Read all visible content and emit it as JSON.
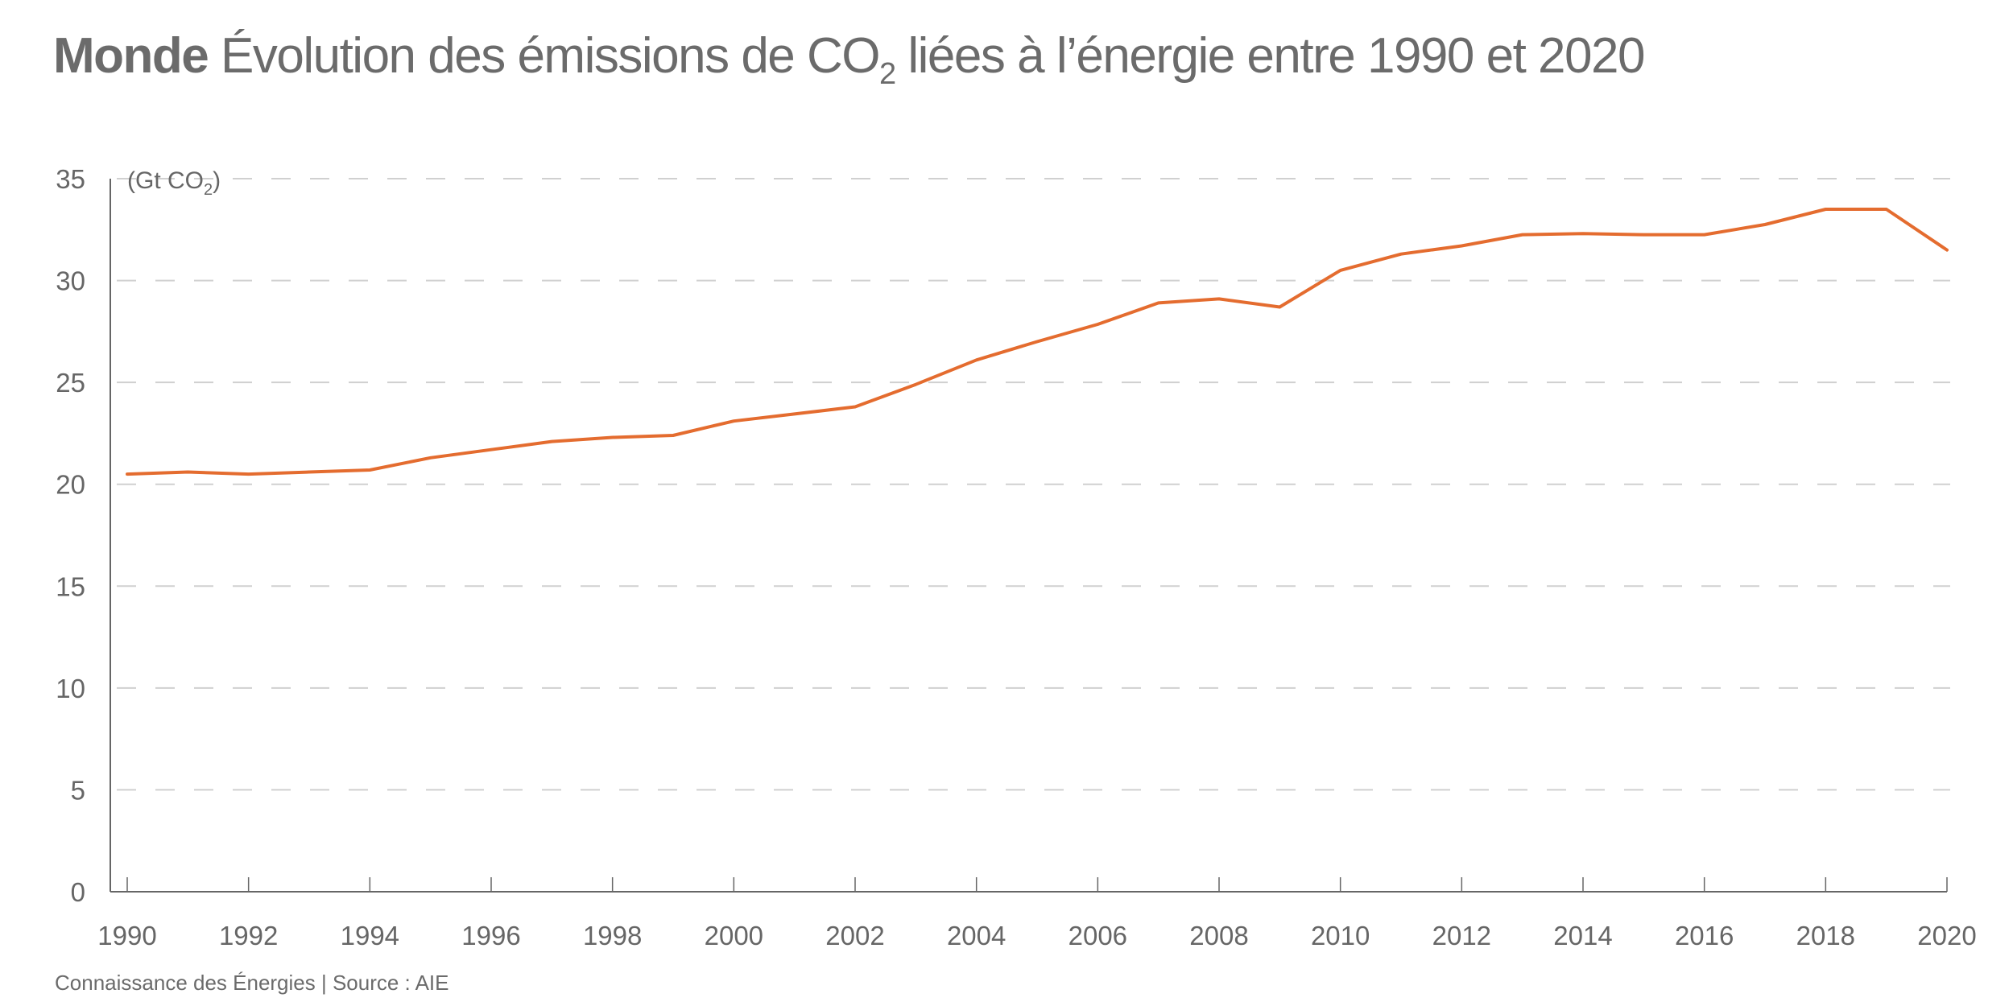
{
  "header": {
    "region": "Monde",
    "title_main": "Évolution des émissions de CO",
    "title_sub": "2",
    "title_rest": " liées à l’énergie entre 1990 et 2020"
  },
  "footer": {
    "credit": "Connaissance des Énergies | Source : AIE"
  },
  "colors": {
    "series": "#E46C2F",
    "text": "#666666",
    "axis": "#666666",
    "grid": "#D0D0D0"
  },
  "chart_data": {
    "type": "line",
    "title": "Monde Évolution des émissions de CO2 liées à l’énergie entre 1990 et 2020",
    "xlabel": "",
    "ylabel": "(Gt CO2)",
    "ylabel_main": "(Gt CO",
    "ylabel_sub": "2",
    "ylabel_end": ")",
    "ylim": [
      0,
      35
    ],
    "xlim": [
      1990,
      2020
    ],
    "y_ticks": [
      0,
      5,
      10,
      15,
      20,
      25,
      30,
      35
    ],
    "x_ticks": [
      1990,
      1992,
      1994,
      1996,
      1998,
      2000,
      2002,
      2004,
      2006,
      2008,
      2010,
      2012,
      2014,
      2016,
      2018,
      2020
    ],
    "grid": "horizontal-dashed",
    "legend": "none",
    "x": [
      1990,
      1991,
      1992,
      1993,
      1994,
      1995,
      1996,
      1997,
      1998,
      1999,
      2000,
      2001,
      2002,
      2003,
      2004,
      2005,
      2006,
      2007,
      2008,
      2009,
      2010,
      2011,
      2012,
      2013,
      2014,
      2015,
      2016,
      2017,
      2018,
      2019,
      2020
    ],
    "series": [
      {
        "name": "Émissions de CO2 liées à l’énergie (Gt CO2)",
        "values": [
          20.5,
          20.6,
          20.5,
          20.6,
          20.7,
          21.3,
          21.7,
          22.1,
          22.3,
          22.4,
          23.1,
          23.45,
          23.8,
          24.9,
          26.1,
          27.0,
          27.85,
          28.9,
          29.1,
          28.7,
          30.5,
          31.3,
          31.7,
          32.25,
          32.3,
          32.25,
          32.25,
          32.75,
          33.5,
          33.5,
          31.5
        ]
      }
    ]
  }
}
